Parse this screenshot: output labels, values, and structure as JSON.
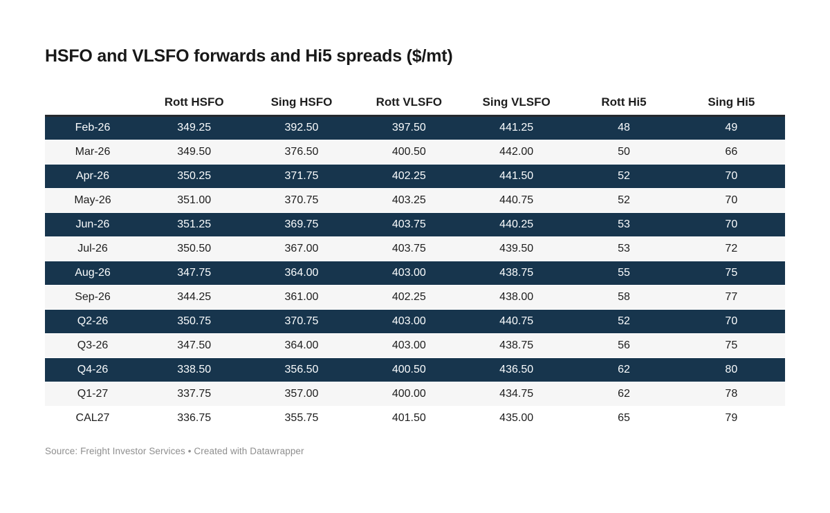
{
  "chart_data": {
    "type": "table",
    "title": "HSFO and VLSFO forwards and Hi5 spreads ($/mt)",
    "columns": [
      "",
      "Rott HSFO",
      "Sing HSFO",
      "Rott VLSFO",
      "Sing VLSFO",
      "Rott Hi5",
      "Sing Hi5"
    ],
    "rows": [
      {
        "label": "Feb-26",
        "values": [
          "349.25",
          "392.50",
          "397.50",
          "441.25",
          "48",
          "49"
        ],
        "row_shade": "dark"
      },
      {
        "label": "Mar-26",
        "values": [
          "349.50",
          "376.50",
          "400.50",
          "442.00",
          "50",
          "66"
        ],
        "row_shade": "light"
      },
      {
        "label": "Apr-26",
        "values": [
          "350.25",
          "371.75",
          "402.25",
          "441.50",
          "52",
          "70"
        ],
        "row_shade": "dark"
      },
      {
        "label": "May-26",
        "values": [
          "351.00",
          "370.75",
          "403.25",
          "440.75",
          "52",
          "70"
        ],
        "row_shade": "light"
      },
      {
        "label": "Jun-26",
        "values": [
          "351.25",
          "369.75",
          "403.75",
          "440.25",
          "53",
          "70"
        ],
        "row_shade": "dark"
      },
      {
        "label": "Jul-26",
        "values": [
          "350.50",
          "367.00",
          "403.75",
          "439.50",
          "53",
          "72"
        ],
        "row_shade": "light"
      },
      {
        "label": "Aug-26",
        "values": [
          "347.75",
          "364.00",
          "403.00",
          "438.75",
          "55",
          "75"
        ],
        "row_shade": "dark"
      },
      {
        "label": "Sep-26",
        "values": [
          "344.25",
          "361.00",
          "402.25",
          "438.00",
          "58",
          "77"
        ],
        "row_shade": "light"
      },
      {
        "label": "Q2-26",
        "values": [
          "350.75",
          "370.75",
          "403.00",
          "440.75",
          "52",
          "70"
        ],
        "row_shade": "dark"
      },
      {
        "label": "Q3-26",
        "values": [
          "347.50",
          "364.00",
          "403.00",
          "438.75",
          "56",
          "75"
        ],
        "row_shade": "light"
      },
      {
        "label": "Q4-26",
        "values": [
          "338.50",
          "356.50",
          "400.50",
          "436.50",
          "62",
          "80"
        ],
        "row_shade": "dark"
      },
      {
        "label": "Q1-27",
        "values": [
          "337.75",
          "357.00",
          "400.00",
          "434.75",
          "62",
          "78"
        ],
        "row_shade": "light"
      },
      {
        "label": "CAL27",
        "values": [
          "336.75",
          "355.75",
          "401.50",
          "435.00",
          "65",
          "79"
        ],
        "row_shade": "white"
      }
    ],
    "layout_hints": {
      "grid": "off",
      "value_alignment": "center",
      "highlighted_row_style": "dark navy background with white text"
    }
  },
  "footer": {
    "text": "Source: Freight Investor Services • Created with Datawrapper"
  },
  "colors": {
    "highlight_row_bg": "#17354d",
    "alt_row_bg": "#f6f6f6",
    "plain_row_bg": "#ffffff",
    "header_rule": "#25292e",
    "title_text": "#181818",
    "body_text": "#1d1d1d",
    "highlight_row_text": "#fbfdfe",
    "footer_text": "#8e8e8e",
    "page_bg": "#ffffff"
  }
}
